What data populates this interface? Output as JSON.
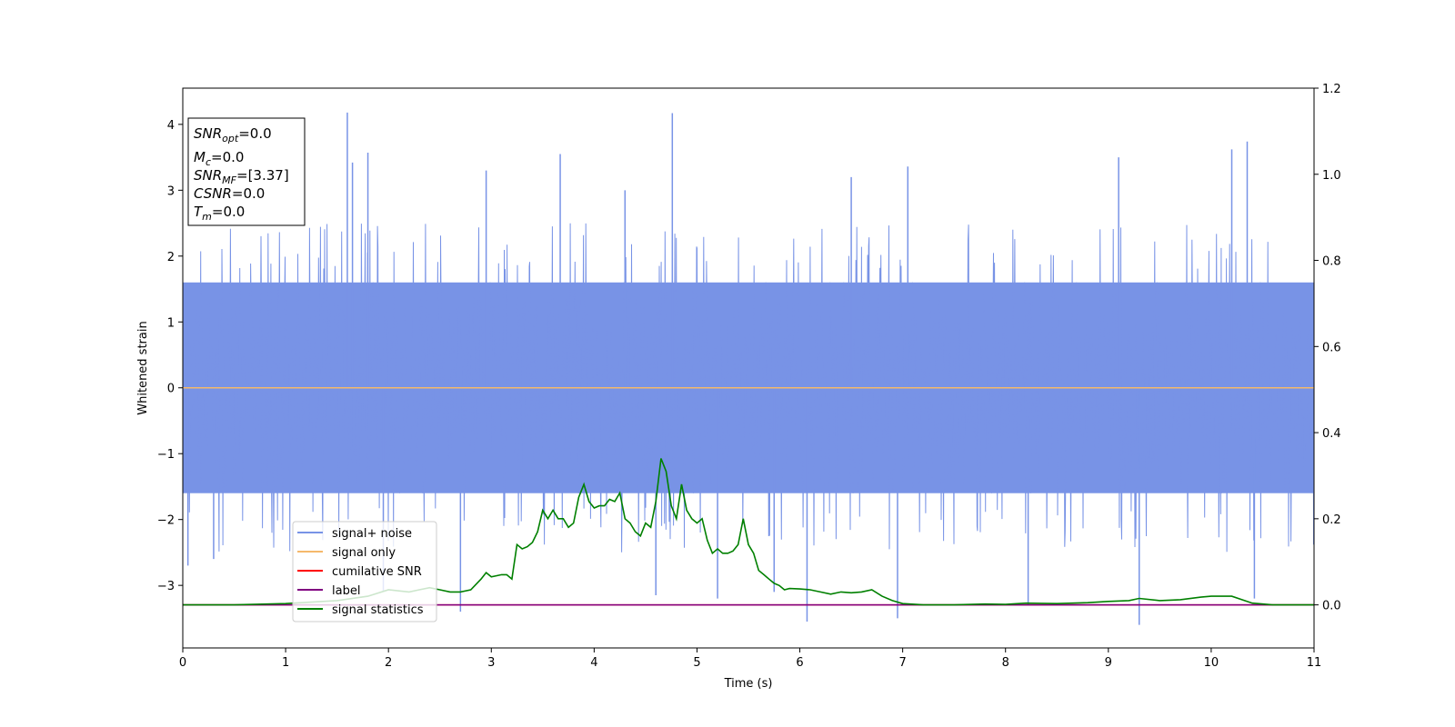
{
  "chart_data": {
    "type": "line",
    "xlabel": "Time (s)",
    "ylabel": "Whitened strain",
    "xlim": [
      0,
      11
    ],
    "ylim": [
      -3.95,
      4.55
    ],
    "y2lim": [
      -0.1,
      1.2
    ],
    "x_ticks": [
      0,
      1,
      2,
      3,
      4,
      5,
      6,
      7,
      8,
      9,
      10,
      11
    ],
    "y_ticks": [
      -3,
      -2,
      -1,
      0,
      1,
      2,
      3,
      4
    ],
    "y2_ticks": [
      0.0,
      0.2,
      0.4,
      0.6,
      0.8,
      1.0,
      1.2
    ],
    "grid": false,
    "legend_position": "lower-left",
    "info_box": {
      "position": "top-left",
      "lines": [
        {
          "main": "SNR",
          "sub": "opt",
          "value": "=0.0"
        },
        {
          "main": "M",
          "sub": "c",
          "value": "=0.0"
        },
        {
          "main": "SNR",
          "sub": "MF",
          "value": "=[3.37]"
        },
        {
          "main": "CSNR",
          "sub": "",
          "value": "=0.0"
        },
        {
          "main": "T",
          "sub": "m",
          "value": "=0.0"
        }
      ]
    },
    "series": [
      {
        "name": "signal+ noise",
        "axis": "left",
        "color": "#7893e6",
        "description_level": "noise",
        "band": [
          -1.6,
          1.6
        ],
        "peaks": [
          [
            1.6,
            4.18
          ],
          [
            1.65,
            3.42
          ],
          [
            1.8,
            3.57
          ],
          [
            2.95,
            3.3
          ],
          [
            3.67,
            3.55
          ],
          [
            4.76,
            4.17
          ],
          [
            10.35,
            3.74
          ],
          [
            10.2,
            3.62
          ],
          [
            4.3,
            3.0
          ],
          [
            6.5,
            3.2
          ],
          [
            7.05,
            3.36
          ],
          [
            9.1,
            3.5
          ],
          [
            1.95,
            -3.1
          ],
          [
            2.7,
            -3.4
          ],
          [
            4.6,
            -3.15
          ],
          [
            5.75,
            -3.1
          ],
          [
            6.07,
            -3.55
          ],
          [
            6.95,
            -3.5
          ],
          [
            9.3,
            -3.6
          ],
          [
            10.42,
            -3.2
          ],
          [
            5.2,
            -3.2
          ],
          [
            8.22,
            -3.3
          ],
          [
            0.05,
            -2.7
          ],
          [
            0.3,
            -2.6
          ]
        ]
      },
      {
        "name": "signal only",
        "axis": "left",
        "color": "#f5b96b",
        "x": [
          0,
          11
        ],
        "y": [
          0,
          0
        ]
      },
      {
        "name": "cumilative SNR",
        "axis": "right",
        "color": "#ff0000",
        "x": [
          0,
          11
        ],
        "y": [
          0,
          0
        ]
      },
      {
        "name": "label",
        "axis": "right",
        "color": "#800080",
        "x": [
          0,
          11
        ],
        "y": [
          0,
          0
        ]
      },
      {
        "name": "signal statistics",
        "axis": "right",
        "color": "#008000",
        "x": [
          0,
          0.5,
          1,
          1.5,
          1.8,
          2.0,
          2.2,
          2.3,
          2.4,
          2.5,
          2.6,
          2.7,
          2.8,
          2.9,
          2.95,
          3.0,
          3.1,
          3.15,
          3.2,
          3.25,
          3.3,
          3.35,
          3.4,
          3.45,
          3.5,
          3.55,
          3.6,
          3.65,
          3.7,
          3.75,
          3.8,
          3.85,
          3.9,
          3.95,
          4.0,
          4.05,
          4.1,
          4.15,
          4.2,
          4.25,
          4.3,
          4.35,
          4.4,
          4.45,
          4.5,
          4.55,
          4.6,
          4.65,
          4.7,
          4.75,
          4.8,
          4.85,
          4.9,
          4.95,
          5.0,
          5.05,
          5.1,
          5.15,
          5.2,
          5.25,
          5.3,
          5.35,
          5.4,
          5.45,
          5.5,
          5.55,
          5.6,
          5.65,
          5.7,
          5.75,
          5.8,
          5.85,
          5.9,
          6.0,
          6.1,
          6.2,
          6.3,
          6.4,
          6.5,
          6.6,
          6.7,
          6.8,
          6.9,
          7.0,
          7.2,
          7.5,
          7.8,
          8.0,
          8.2,
          8.5,
          8.8,
          9.0,
          9.2,
          9.3,
          9.5,
          9.7,
          9.9,
          10.0,
          10.2,
          10.4,
          10.6,
          11.0
        ],
        "y": [
          0.0,
          0.0,
          0.003,
          0.01,
          0.02,
          0.035,
          0.03,
          0.035,
          0.04,
          0.035,
          0.03,
          0.03,
          0.035,
          0.06,
          0.075,
          0.065,
          0.07,
          0.07,
          0.06,
          0.14,
          0.13,
          0.135,
          0.145,
          0.17,
          0.22,
          0.2,
          0.22,
          0.2,
          0.2,
          0.18,
          0.19,
          0.25,
          0.28,
          0.24,
          0.225,
          0.23,
          0.23,
          0.245,
          0.24,
          0.26,
          0.2,
          0.19,
          0.17,
          0.16,
          0.19,
          0.18,
          0.24,
          0.34,
          0.31,
          0.23,
          0.2,
          0.28,
          0.22,
          0.2,
          0.19,
          0.2,
          0.15,
          0.12,
          0.13,
          0.12,
          0.12,
          0.125,
          0.14,
          0.2,
          0.14,
          0.12,
          0.08,
          0.07,
          0.06,
          0.05,
          0.045,
          0.035,
          0.038,
          0.037,
          0.035,
          0.03,
          0.025,
          0.03,
          0.028,
          0.03,
          0.035,
          0.02,
          0.01,
          0.003,
          0.0,
          0.0,
          0.002,
          0.001,
          0.004,
          0.003,
          0.005,
          0.008,
          0.01,
          0.015,
          0.01,
          0.012,
          0.018,
          0.02,
          0.02,
          0.004,
          0.0,
          0.0
        ]
      }
    ]
  }
}
